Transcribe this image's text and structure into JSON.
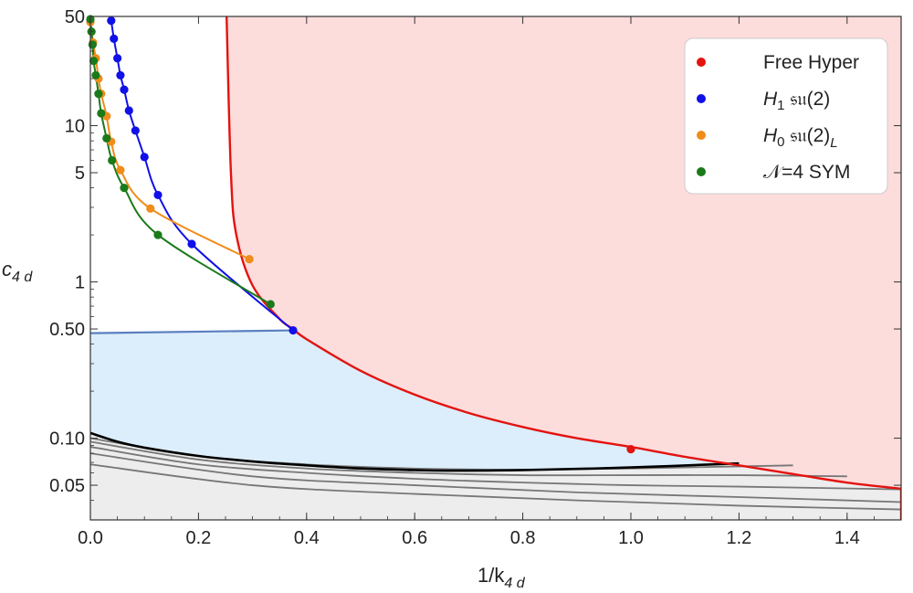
{
  "chart_data": {
    "type": "line",
    "xlabel": "1/k",
    "xlabel_sub": "4 d",
    "ylabel": "c",
    "ylabel_sub": "4 d",
    "xlim": [
      0,
      1.5
    ],
    "ylim": [
      0.03,
      50
    ],
    "y_scale": "log",
    "grid": false,
    "legend_position": "top-right",
    "x_ticks": [
      {
        "value": 0.0,
        "label": "0.0"
      },
      {
        "value": 0.2,
        "label": "0.2"
      },
      {
        "value": 0.4,
        "label": "0.4"
      },
      {
        "value": 0.6,
        "label": "0.6"
      },
      {
        "value": 0.8,
        "label": "0.8"
      },
      {
        "value": 1.0,
        "label": "1.0"
      },
      {
        "value": 1.2,
        "label": "1.2"
      },
      {
        "value": 1.4,
        "label": "1.4"
      }
    ],
    "y_ticks": [
      {
        "value": 0.05,
        "label": "0.05"
      },
      {
        "value": 0.1,
        "label": "0.10"
      },
      {
        "value": 0.5,
        "label": "0.50"
      },
      {
        "value": 1,
        "label": "1"
      },
      {
        "value": 5,
        "label": "5"
      },
      {
        "value": 10,
        "label": "10"
      },
      {
        "value": 50,
        "label": "50"
      }
    ],
    "legend": [
      {
        "label": "Free Hyper",
        "color": "#e3130f"
      },
      {
        "label": "H",
        "sub": "1",
        "suffix": " 𝔰𝔲(2)",
        "color": "#1010e8"
      },
      {
        "label": "H",
        "sub": "0",
        "suffix": " 𝔰𝔲(2)",
        "suffix_sub": "L",
        "color": "#f08c1a"
      },
      {
        "label": "𝒩=4 SYM",
        "color": "#1a7a1a"
      }
    ],
    "regions": {
      "red_fill": "#fddcdc",
      "blue_fill": "#dceefc",
      "gray_fill": "#ededed"
    },
    "free_hyper_curve": {
      "color": "#e3130f",
      "x": [
        0.252,
        0.26,
        0.27,
        0.3,
        0.35,
        0.375,
        0.4,
        0.5,
        0.6,
        0.7,
        0.8,
        0.9,
        1.0,
        1.1,
        1.2,
        1.3,
        1.4,
        1.5
      ],
      "y": [
        50,
        5.0,
        2.0,
        0.95,
        0.58,
        0.5,
        0.43,
        0.27,
        0.19,
        0.145,
        0.118,
        0.1,
        0.088,
        0.076,
        0.067,
        0.059,
        0.052,
        0.0475
      ]
    },
    "free_hyper_point": {
      "x": 1.0,
      "y": 0.085
    },
    "blue_boundary": {
      "color": "#5b7fbf",
      "x": [
        0,
        0.375
      ],
      "y": [
        0.47,
        0.49
      ]
    },
    "bound_curve": {
      "color": "#000000",
      "x": [
        0.0,
        0.05,
        0.1,
        0.2,
        0.3,
        0.4,
        0.5,
        0.6,
        0.66,
        0.8,
        1.0,
        1.2
      ],
      "y": [
        0.108,
        0.095,
        0.087,
        0.077,
        0.071,
        0.067,
        0.064,
        0.0625,
        0.062,
        0.0625,
        0.065,
        0.069
      ]
    },
    "gray_curves": [
      {
        "x": [
          0.0,
          0.2,
          0.4,
          0.6,
          0.8,
          1.0,
          1.2,
          1.3
        ],
        "y": [
          0.1,
          0.077,
          0.068,
          0.064,
          0.063,
          0.064,
          0.066,
          0.067
        ]
      },
      {
        "x": [
          0.0,
          0.2,
          0.4,
          0.6,
          0.8,
          1.0,
          1.2,
          1.4
        ],
        "y": [
          0.095,
          0.073,
          0.064,
          0.06,
          0.058,
          0.058,
          0.058,
          0.057
        ]
      },
      {
        "x": [
          0.0,
          0.2,
          0.4,
          0.6,
          0.8,
          1.0,
          1.2,
          1.5
        ],
        "y": [
          0.088,
          0.068,
          0.06,
          0.055,
          0.052,
          0.05,
          0.049,
          0.047
        ]
      },
      {
        "x": [
          0.0,
          0.3,
          0.6,
          0.9,
          1.2,
          1.5
        ],
        "y": [
          0.08,
          0.057,
          0.05,
          0.045,
          0.042,
          0.039
        ]
      },
      {
        "x": [
          0.0,
          0.3,
          0.6,
          0.9,
          1.2,
          1.5
        ],
        "y": [
          0.068,
          0.05,
          0.044,
          0.04,
          0.037,
          0.035
        ]
      }
    ],
    "series": [
      {
        "name": "Free Hyper",
        "color": "#e3130f",
        "x": [
          1.0
        ],
        "y": [
          0.085
        ]
      },
      {
        "name": "H1 su(2)",
        "color": "#1010e8",
        "x": [
          0.0385,
          0.0435,
          0.05,
          0.0556,
          0.0625,
          0.0714,
          0.0833,
          0.1,
          0.125,
          0.1875,
          0.375
        ],
        "y": [
          47,
          36,
          27,
          21,
          17,
          12.5,
          9.3,
          6.3,
          3.6,
          1.75,
          0.49
        ]
      },
      {
        "name": "H0 su(2)L",
        "color": "#f08c1a",
        "x": [
          0.0,
          0.005,
          0.01,
          0.015,
          0.02,
          0.03,
          0.0385,
          0.0556,
          0.1111,
          0.2941
        ],
        "y": [
          46,
          34,
          27,
          20,
          16,
          11.5,
          7.9,
          5.2,
          2.95,
          1.4
        ]
      },
      {
        "name": "N=4 SYM",
        "color": "#1a7a1a",
        "x": [
          0.0,
          0.002,
          0.004,
          0.006,
          0.01,
          0.015,
          0.02,
          0.03,
          0.04,
          0.0625,
          0.125,
          0.3333
        ],
        "y": [
          48,
          40,
          33,
          26,
          21,
          16,
          12,
          8.3,
          6.0,
          4.0,
          2.0,
          0.72
        ]
      }
    ]
  }
}
